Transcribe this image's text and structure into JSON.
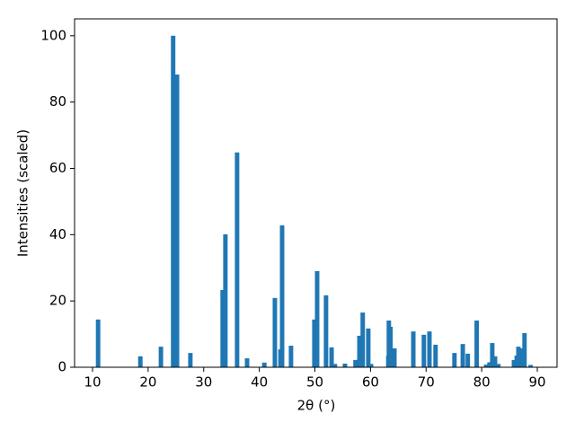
{
  "chart_data": {
    "type": "bar",
    "x_label": "2θ (°)",
    "y_label": "Intensities (scaled)",
    "color": "#1f77b4",
    "x": [
      11.0,
      18.6,
      22.3,
      24.5,
      25.2,
      27.6,
      33.4,
      33.9,
      36.0,
      37.8,
      40.9,
      42.8,
      43.8,
      44.1,
      45.7,
      49.9,
      50.4,
      52.0,
      53.0,
      53.6,
      55.4,
      57.3,
      58.0,
      58.6,
      59.6,
      60.1,
      63.2,
      63.3,
      63.6,
      64.3,
      67.7,
      69.6,
      70.6,
      71.7,
      75.1,
      76.6,
      77.5,
      79.1,
      80.8,
      81.4,
      81.9,
      82.4,
      83.0,
      85.8,
      86.3,
      86.6,
      87.1,
      87.7,
      88.8
    ],
    "values": [
      14.4,
      3.3,
      6.2,
      100,
      88.3,
      4.3,
      23.3,
      40.1,
      64.8,
      2.7,
      1.4,
      20.9,
      5.4,
      42.8,
      6.5,
      14.4,
      29.0,
      21.7,
      6.0,
      1.0,
      1.1,
      2.2,
      9.5,
      16.5,
      11.7,
      1.0,
      3.5,
      14.1,
      12.2,
      5.7,
      10.8,
      9.8,
      10.8,
      6.8,
      4.3,
      7.0,
      4.1,
      14.1,
      0.8,
      1.5,
      7.3,
      3.3,
      1.0,
      2.2,
      3.5,
      6.2,
      5.7,
      10.3,
      0.7
    ],
    "xlim": [
      6.77,
      93.55
    ],
    "ylim": [
      0,
      105.1
    ],
    "xticks": [
      10,
      20,
      30,
      40,
      50,
      60,
      70,
      80,
      90
    ],
    "yticks": [
      0,
      20,
      40,
      60,
      80,
      100
    ]
  }
}
